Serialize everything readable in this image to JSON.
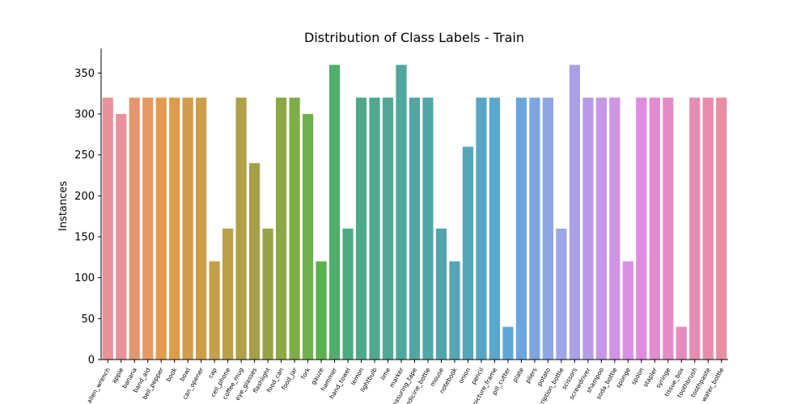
{
  "chart_data": {
    "type": "bar",
    "title": "Distribution of Class Labels - Train",
    "xlabel": "",
    "ylabel": "Instances",
    "ylim": [
      0,
      380
    ],
    "yticks": [
      0,
      50,
      100,
      150,
      200,
      250,
      300,
      350
    ],
    "grid": false,
    "categories": [
      "allen_wrench",
      "apple",
      "banana",
      "band_aid",
      "bell_pepper",
      "book",
      "bowl",
      "can_opener",
      "cap",
      "cell_phone",
      "coffee_mug",
      "eye_glasses",
      "flashlight",
      "food_can",
      "food_jar",
      "fork",
      "gauze",
      "hammer",
      "hand_towel",
      "lemon",
      "lightbulb",
      "lime",
      "marker",
      "measuring_tape",
      "medicine_bottle",
      "mouse",
      "notebook",
      "onion",
      "pencil",
      "picture_frame",
      "pill_cutter",
      "plate",
      "pliers",
      "potato",
      "prescription_bottle",
      "scissors",
      "screwdriver",
      "shampoo",
      "soda_bottle",
      "sponge",
      "spoon",
      "stapler",
      "syringe",
      "tissue_box",
      "toothbrush",
      "toothpaste",
      "water_bottle"
    ],
    "tick_labels": [
      "allen_wrench",
      "apple",
      "banana",
      "band_aid",
      "bell_pepper",
      "book",
      "bowl",
      "can_opener",
      "cap",
      "cell_phone",
      "coffee_mug",
      "eye_glasses",
      "flashlight",
      "food_can",
      "food_jar",
      "fork",
      "gauze",
      "hammer",
      "hand_towel",
      "lemon",
      "lightbulb",
      "lime",
      "marker",
      "measuring_tape",
      "medicine_bottle",
      "mouse",
      "notebook",
      "onion",
      "pencil",
      "picture_frame",
      "pill_cutter",
      "plate",
      "pliers",
      "potato",
      "prescription_bottle",
      "scissors",
      "screwdriver",
      "shampoo",
      "soda_bottle",
      "sponge",
      "spoon",
      "stapler",
      "syringe",
      "tissue_box",
      "toothbrush",
      "toothpaste",
      "water_bottle"
    ],
    "values": [
      320,
      300,
      320,
      320,
      320,
      320,
      320,
      320,
      120,
      160,
      320,
      240,
      160,
      320,
      320,
      300,
      120,
      360,
      160,
      320,
      320,
      320,
      360,
      320,
      320,
      160,
      120,
      260,
      320,
      320,
      40,
      320,
      320,
      320,
      160,
      360,
      320,
      320,
      320,
      120,
      320,
      320,
      320,
      40,
      320,
      320,
      320
    ],
    "colors": [
      "#e8929a",
      "#e8929a",
      "#e6966f",
      "#e69a62",
      "#e39c4f",
      "#df9c48",
      "#d29c4b",
      "#cc9e4a",
      "#c59f49",
      "#bb9f48",
      "#b0a047",
      "#a4a147",
      "#98a346",
      "#8ba845",
      "#7ead45",
      "#6fb14c",
      "#5ab150",
      "#4fae6a",
      "#4dac7d",
      "#4ea98a",
      "#4fa991",
      "#50a897",
      "#50a79c",
      "#51a6a1",
      "#52a6a7",
      "#53a5ad",
      "#55a5b2",
      "#56a6b9",
      "#57a7c2",
      "#58a8ce",
      "#5da7d8",
      "#6ba6de",
      "#7ba6e1",
      "#8da7e4",
      "#9ea7e6",
      "#a9a0e7",
      "#b89be6",
      "#c597e6",
      "#d193e5",
      "#d98fe3",
      "#e18be0",
      "#e38ad3",
      "#e48ac7",
      "#e58bbd",
      "#e68cb3",
      "#e78da9",
      "#e78fa0"
    ]
  }
}
